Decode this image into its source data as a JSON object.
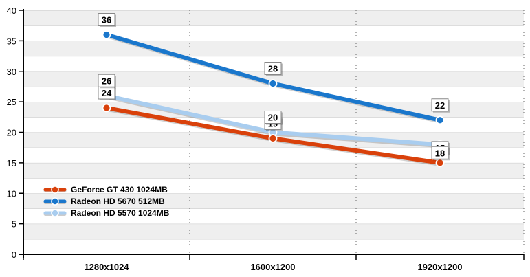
{
  "chart_data": {
    "type": "line",
    "title": "",
    "xlabel": "",
    "ylabel": "",
    "categories": [
      "1280x1024",
      "1600x1200",
      "1920x1200"
    ],
    "ylim": [
      0,
      40
    ],
    "yticks": [
      0,
      5,
      10,
      15,
      20,
      25,
      30,
      35,
      40
    ],
    "grid": true,
    "legend_position": "bottom-left",
    "series": [
      {
        "name": "GeForce GT 430 1024MB",
        "values": [
          24,
          19,
          15
        ],
        "color": "#d9410b"
      },
      {
        "name": "Radeon HD 5670 512MB",
        "values": [
          36,
          28,
          22
        ],
        "color": "#1a77cc"
      },
      {
        "name": "Radeon HD 5570 1024MB",
        "values": [
          26,
          20,
          18
        ],
        "color": "#a9cdef"
      }
    ]
  }
}
